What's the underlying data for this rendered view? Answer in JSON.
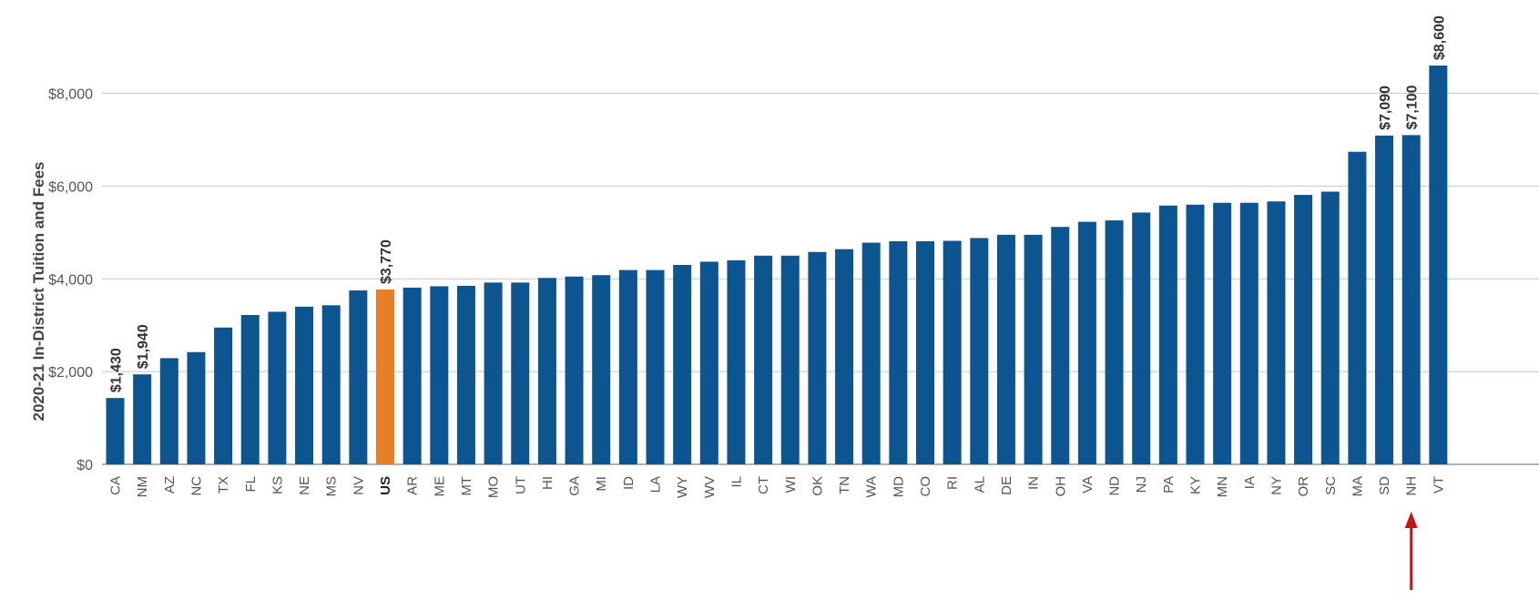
{
  "chart_data": {
    "type": "bar",
    "ylabel": "2020-21 In-District Tuition and Fees",
    "ylim": [
      0,
      8600
    ],
    "yticks": [
      0,
      2000,
      4000,
      6000,
      8000
    ],
    "ytick_labels": [
      "$0",
      "$2,000",
      "$4,000",
      "$6,000",
      "$8,000"
    ],
    "grid": true,
    "categories": [
      "CA",
      "NM",
      "AZ",
      "NC",
      "TX",
      "FL",
      "KS",
      "NE",
      "MS",
      "NV",
      "US",
      "AR",
      "ME",
      "MT",
      "MO",
      "UT",
      "HI",
      "GA",
      "MI",
      "ID",
      "LA",
      "WY",
      "WV",
      "IL",
      "CT",
      "WI",
      "OK",
      "TN",
      "WA",
      "MD",
      "CO",
      "RI",
      "AL",
      "DE",
      "IN",
      "OH",
      "VA",
      "ND",
      "NJ",
      "PA",
      "KY",
      "MN",
      "IA",
      "NY",
      "OR",
      "SC",
      "MA",
      "SD",
      "NH",
      "VT"
    ],
    "values": [
      1430,
      1940,
      2290,
      2420,
      2950,
      3220,
      3290,
      3400,
      3430,
      3750,
      3770,
      3810,
      3840,
      3850,
      3920,
      3920,
      4020,
      4050,
      4080,
      4190,
      4190,
      4300,
      4370,
      4400,
      4500,
      4500,
      4580,
      4640,
      4780,
      4810,
      4810,
      4820,
      4880,
      4950,
      4950,
      5120,
      5230,
      5260,
      5430,
      5580,
      5600,
      5640,
      5640,
      5670,
      5810,
      5880,
      6740,
      7090,
      7100,
      8600
    ],
    "data_labels": {
      "CA": "$1,430",
      "NM": "$1,940",
      "US": "$3,770",
      "SD": "$7,090",
      "NH": "$7,100",
      "VT": "$8,600"
    },
    "highlight": "US",
    "colors": {
      "bar": "#0c5591",
      "highlight": "#e87f27",
      "grid": "#c8c8c8",
      "arrow": "#c41414"
    },
    "annotation": {
      "type": "arrow",
      "points_to": "NH"
    }
  }
}
